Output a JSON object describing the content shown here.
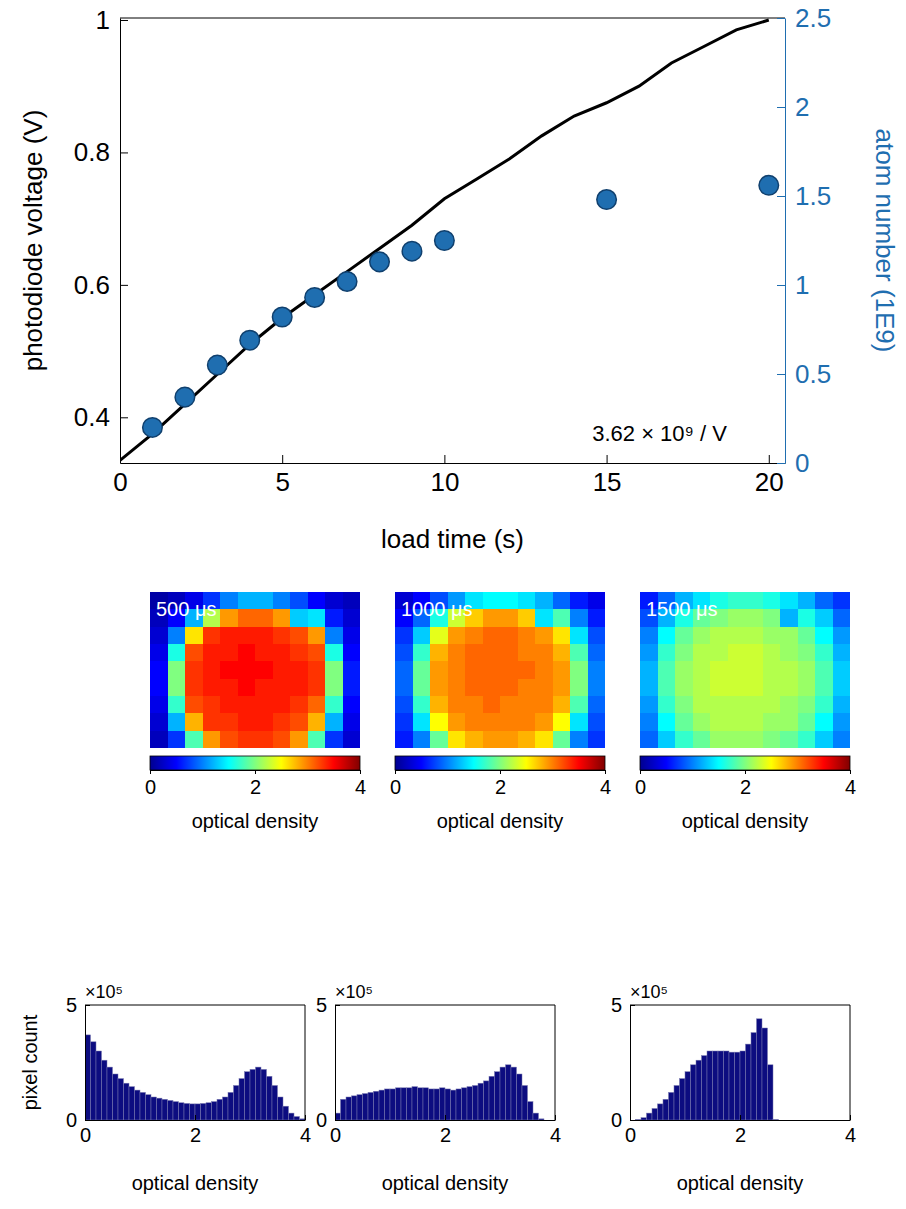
{
  "chart_data": [
    {
      "type": "line",
      "xlabel": "load time (s)",
      "ylabel": "photodiode voltage (V)",
      "y2label": "atom number (1E9)",
      "annotation": "3.62 × 10⁹ / V",
      "xlim": [
        0,
        20.5
      ],
      "xticks": [
        0,
        5,
        10,
        15,
        20
      ],
      "ylim": [
        0.331,
        1.003
      ],
      "yticks": [
        0.4,
        0.6,
        0.8,
        1
      ],
      "y2lim": [
        0,
        2.5
      ],
      "y2ticks": [
        0,
        0.5,
        1,
        1.5,
        2,
        2.5
      ],
      "grid": false,
      "series": [
        {
          "type": "line",
          "color": "#000000",
          "line_style": "solid",
          "x": [
            0,
            1,
            2,
            3,
            4,
            5,
            6,
            7,
            8,
            9,
            10,
            11,
            12,
            13,
            14,
            15,
            16,
            17,
            18,
            19,
            20
          ],
          "values": [
            0.335,
            0.375,
            0.42,
            0.465,
            0.51,
            0.55,
            0.585,
            0.62,
            0.655,
            0.69,
            0.73,
            0.76,
            0.79,
            0.825,
            0.855,
            0.875,
            0.9,
            0.935,
            0.96,
            0.985,
            1.0
          ]
        },
        {
          "type": "scatter",
          "axis": "y2",
          "color": "#1f6eb0",
          "marker": "circle",
          "x": [
            1,
            2,
            3,
            4,
            5,
            6,
            7,
            8,
            9,
            10,
            15,
            20
          ],
          "values": [
            0.2,
            0.37,
            0.55,
            0.69,
            0.82,
            0.93,
            1.02,
            1.13,
            1.19,
            1.25,
            1.48,
            1.56
          ]
        }
      ]
    },
    {
      "type": "heatmap",
      "annotation": "500 μs",
      "tick_labels": false,
      "cells": [
        [
          0.1,
          0.2,
          0.4,
          0.7,
          1.0,
          1.2,
          1.2,
          1.0,
          0.8,
          0.5,
          0.3,
          0.2
        ],
        [
          0.2,
          0.5,
          1.2,
          2.2,
          2.9,
          3.1,
          3.1,
          2.9,
          1.3,
          1.4,
          0.6,
          0.3
        ],
        [
          0.3,
          1.0,
          2.6,
          3.3,
          3.4,
          3.4,
          3.4,
          3.3,
          3.2,
          2.9,
          1.0,
          0.4
        ],
        [
          0.4,
          1.6,
          3.2,
          3.4,
          3.4,
          3.5,
          3.4,
          3.4,
          3.3,
          3.2,
          1.6,
          0.5
        ],
        [
          0.5,
          2.0,
          3.3,
          3.4,
          3.5,
          3.5,
          3.5,
          3.4,
          3.4,
          3.3,
          2.0,
          0.6
        ],
        [
          0.5,
          2.0,
          3.3,
          3.4,
          3.4,
          3.5,
          3.4,
          3.4,
          3.4,
          3.3,
          2.0,
          0.6
        ],
        [
          0.4,
          1.7,
          3.2,
          3.3,
          3.4,
          3.4,
          3.4,
          3.4,
          3.3,
          3.1,
          1.7,
          0.5
        ],
        [
          0.3,
          1.2,
          2.8,
          3.3,
          3.3,
          3.4,
          3.4,
          3.3,
          3.2,
          2.8,
          1.2,
          0.4
        ],
        [
          0.2,
          0.7,
          1.8,
          2.9,
          3.2,
          3.3,
          3.3,
          3.2,
          2.9,
          1.8,
          0.7,
          0.3
        ]
      ],
      "colorbar": {
        "range": [
          0,
          4
        ],
        "ticks": [
          0,
          2,
          4
        ],
        "label": "optical density"
      }
    },
    {
      "type": "heatmap",
      "annotation": "1000 μs",
      "tick_labels": false,
      "cells": [
        [
          0.3,
          0.5,
          0.8,
          1.1,
          1.4,
          1.5,
          1.5,
          1.4,
          1.2,
          0.9,
          0.6,
          0.4
        ],
        [
          0.5,
          0.9,
          1.6,
          2.3,
          2.7,
          2.9,
          2.9,
          2.7,
          1.4,
          1.8,
          1.0,
          0.6
        ],
        [
          0.7,
          1.3,
          2.4,
          2.9,
          3.0,
          3.1,
          3.1,
          3.0,
          2.9,
          2.6,
          1.4,
          0.8
        ],
        [
          0.8,
          1.7,
          2.8,
          3.0,
          3.1,
          3.1,
          3.1,
          3.0,
          3.0,
          2.8,
          1.8,
          0.9
        ],
        [
          0.9,
          1.9,
          2.9,
          3.0,
          3.1,
          3.1,
          3.1,
          3.1,
          3.0,
          2.9,
          2.0,
          1.0
        ],
        [
          0.9,
          1.9,
          2.9,
          3.0,
          3.1,
          3.1,
          3.1,
          3.0,
          3.0,
          2.9,
          2.0,
          1.0
        ],
        [
          0.8,
          1.7,
          2.8,
          3.0,
          3.0,
          3.1,
          3.0,
          3.0,
          3.0,
          2.8,
          1.8,
          0.9
        ],
        [
          0.7,
          1.4,
          2.5,
          2.9,
          3.0,
          3.0,
          3.0,
          3.0,
          2.9,
          2.5,
          1.4,
          0.8
        ],
        [
          0.6,
          1.0,
          1.9,
          2.6,
          2.8,
          2.9,
          2.9,
          2.8,
          2.6,
          1.9,
          1.0,
          0.7
        ]
      ],
      "colorbar": {
        "range": [
          0,
          4
        ],
        "ticks": [
          0,
          2,
          4
        ],
        "label": "optical density"
      }
    },
    {
      "type": "heatmap",
      "annotation": "1500 μs",
      "tick_labels": false,
      "cells": [
        [
          0.6,
          0.9,
          1.2,
          1.4,
          1.6,
          1.7,
          1.7,
          1.6,
          1.4,
          1.2,
          0.9,
          0.7
        ],
        [
          0.8,
          1.2,
          1.6,
          1.9,
          2.0,
          2.1,
          2.1,
          2.0,
          1.2,
          1.6,
          1.3,
          0.9
        ],
        [
          1.0,
          1.5,
          1.9,
          2.1,
          2.2,
          2.2,
          2.2,
          2.1,
          2.1,
          1.9,
          1.5,
          1.1
        ],
        [
          1.1,
          1.7,
          2.0,
          2.2,
          2.2,
          2.3,
          2.3,
          2.2,
          2.1,
          2.0,
          1.7,
          1.2
        ],
        [
          1.2,
          1.8,
          2.1,
          2.2,
          2.3,
          2.3,
          2.3,
          2.2,
          2.2,
          2.1,
          1.8,
          1.3
        ],
        [
          1.2,
          1.8,
          2.1,
          2.2,
          2.3,
          2.3,
          2.3,
          2.2,
          2.2,
          2.1,
          1.8,
          1.3
        ],
        [
          1.1,
          1.7,
          2.0,
          2.2,
          2.2,
          2.2,
          2.2,
          2.2,
          2.1,
          2.0,
          1.7,
          1.2
        ],
        [
          1.0,
          1.5,
          1.9,
          2.1,
          2.2,
          2.2,
          2.2,
          2.1,
          2.1,
          1.9,
          1.5,
          1.1
        ],
        [
          0.9,
          1.3,
          1.7,
          1.9,
          2.1,
          2.1,
          2.1,
          2.0,
          1.9,
          1.7,
          1.3,
          1.0
        ]
      ],
      "colorbar": {
        "range": [
          0,
          4
        ],
        "ticks": [
          0,
          2,
          4
        ],
        "label": "optical density"
      }
    },
    {
      "type": "histogram",
      "xlabel": "optical density",
      "ylabel": "pixel count",
      "y_exponent_label": "×10⁵",
      "color": "#0c0c80",
      "xlim": [
        0,
        4
      ],
      "xticks": [
        0,
        2,
        4
      ],
      "ylim": [
        0,
        5
      ],
      "yticks": [
        0,
        5
      ],
      "bins": [
        0,
        0.1,
        0.2,
        0.3,
        0.4,
        0.5,
        0.6,
        0.7,
        0.8,
        0.9,
        1.0,
        1.1,
        1.2,
        1.3,
        1.4,
        1.5,
        1.6,
        1.7,
        1.8,
        1.9,
        2.0,
        2.1,
        2.2,
        2.3,
        2.4,
        2.5,
        2.6,
        2.7,
        2.8,
        2.9,
        3.0,
        3.1,
        3.2,
        3.3,
        3.4,
        3.5,
        3.6,
        3.7,
        3.8,
        3.9,
        4.0
      ],
      "counts": [
        3.7,
        3.4,
        3.0,
        2.6,
        2.3,
        2.0,
        1.8,
        1.6,
        1.45,
        1.3,
        1.2,
        1.1,
        1.0,
        0.95,
        0.9,
        0.85,
        0.8,
        0.75,
        0.72,
        0.7,
        0.7,
        0.72,
        0.75,
        0.8,
        0.9,
        1.0,
        1.2,
        1.5,
        1.8,
        2.1,
        2.2,
        2.3,
        2.2,
        1.9,
        1.5,
        1.0,
        0.6,
        0.3,
        0.15,
        0.05
      ]
    },
    {
      "type": "histogram",
      "xlabel": "optical density",
      "y_exponent_label": "×10⁵",
      "color": "#0c0c80",
      "xlim": [
        0,
        4
      ],
      "xticks": [
        0,
        2,
        4
      ],
      "ylim": [
        0,
        5
      ],
      "yticks": [
        0,
        5
      ],
      "bins": [
        0,
        0.1,
        0.2,
        0.3,
        0.4,
        0.5,
        0.6,
        0.7,
        0.8,
        0.9,
        1.0,
        1.1,
        1.2,
        1.3,
        1.4,
        1.5,
        1.6,
        1.7,
        1.8,
        1.9,
        2.0,
        2.1,
        2.2,
        2.3,
        2.4,
        2.5,
        2.6,
        2.7,
        2.8,
        2.9,
        3.0,
        3.1,
        3.2,
        3.3,
        3.4,
        3.5,
        3.6,
        3.7,
        3.8,
        3.9,
        4.0
      ],
      "counts": [
        0.3,
        0.9,
        1.0,
        1.05,
        1.1,
        1.15,
        1.2,
        1.25,
        1.3,
        1.35,
        1.35,
        1.4,
        1.4,
        1.4,
        1.45,
        1.4,
        1.4,
        1.35,
        1.35,
        1.4,
        1.35,
        1.3,
        1.35,
        1.4,
        1.45,
        1.5,
        1.6,
        1.7,
        1.9,
        2.1,
        2.3,
        2.4,
        2.3,
        2.0,
        1.5,
        0.8,
        0.3,
        0.05,
        0,
        0
      ]
    },
    {
      "type": "histogram",
      "xlabel": "optical density",
      "y_exponent_label": "×10⁵",
      "color": "#0c0c80",
      "xlim": [
        0,
        4
      ],
      "xticks": [
        0,
        2,
        4
      ],
      "ylim": [
        0,
        5
      ],
      "yticks": [
        0,
        5
      ],
      "bins": [
        0,
        0.1,
        0.2,
        0.3,
        0.4,
        0.5,
        0.6,
        0.7,
        0.8,
        0.9,
        1.0,
        1.1,
        1.2,
        1.3,
        1.4,
        1.5,
        1.6,
        1.7,
        1.8,
        1.9,
        2.0,
        2.1,
        2.2,
        2.3,
        2.4,
        2.5,
        2.6,
        2.7,
        2.8,
        2.9,
        3.0,
        3.1,
        3.2,
        3.3,
        3.4,
        3.5,
        3.6,
        3.7,
        3.8,
        3.9,
        4.0
      ],
      "counts": [
        0,
        0.02,
        0.1,
        0.3,
        0.5,
        0.7,
        0.9,
        1.2,
        1.5,
        1.8,
        2.1,
        2.4,
        2.6,
        2.8,
        3.0,
        3.0,
        3.0,
        3.0,
        2.95,
        2.95,
        3.0,
        3.3,
        3.8,
        4.4,
        4.0,
        2.4,
        0.02,
        0,
        0,
        0,
        0,
        0,
        0,
        0,
        0,
        0,
        0,
        0,
        0,
        0
      ]
    }
  ]
}
